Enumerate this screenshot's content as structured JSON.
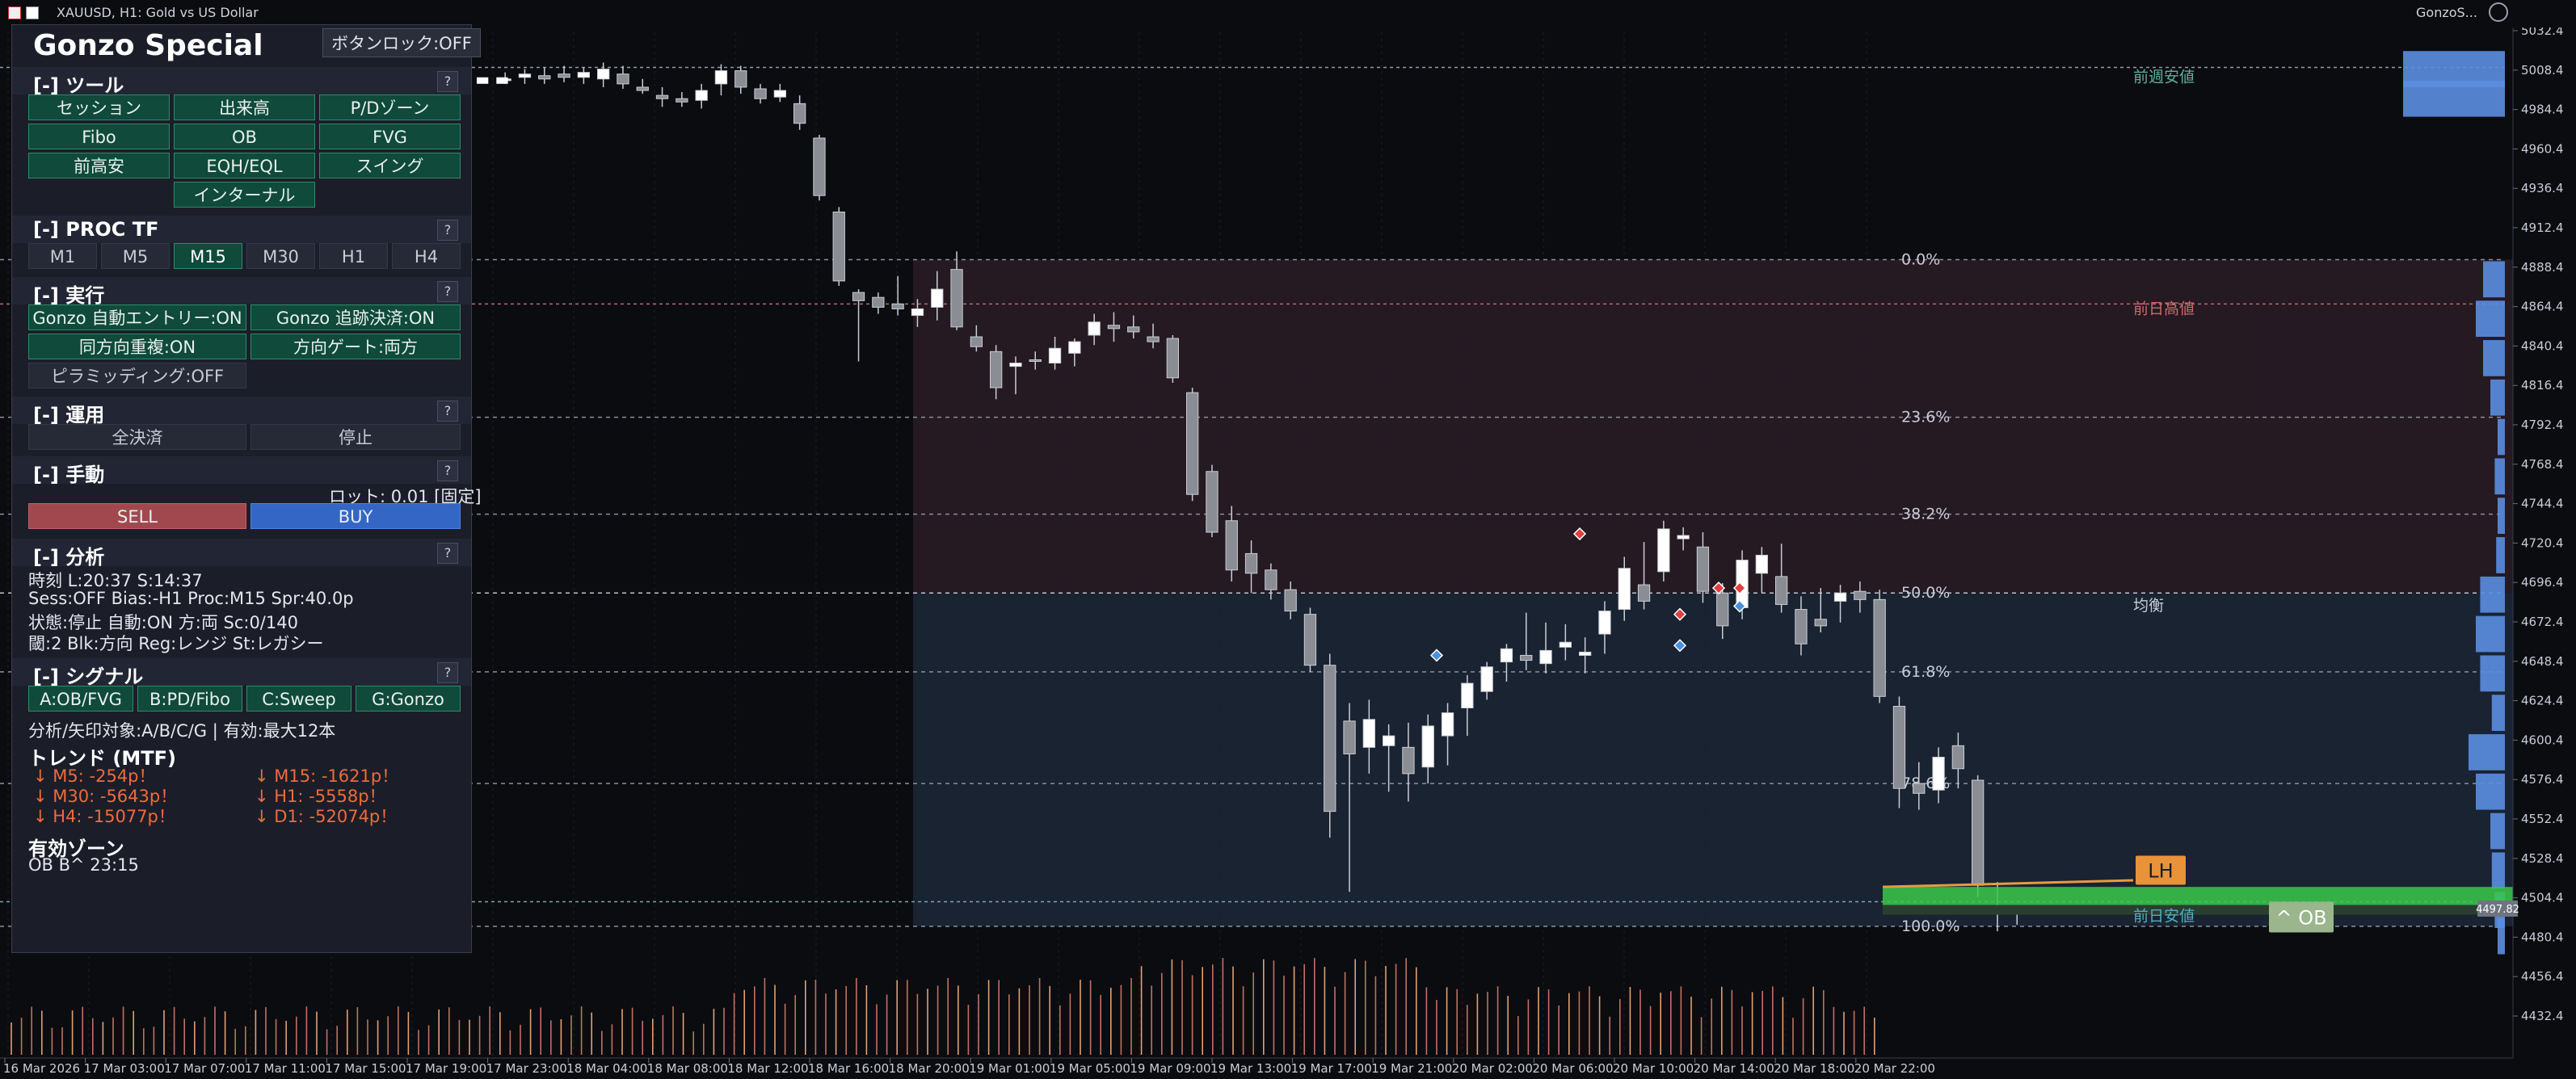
{
  "window": {
    "symbol_title": "XAUUSD, H1:  Gold vs US Dollar",
    "indicator_short": "GonzoS..."
  },
  "panel": {
    "title": "Gonzo Special",
    "button_lock": "ボタンロック:OFF",
    "tools": {
      "header": "[-] ツール",
      "help": "?",
      "buttons": [
        "セッション",
        "出来高",
        "P/Dゾーン",
        "Fibo",
        "OB",
        "FVG",
        "前高安",
        "EQH/EQL",
        "スイング",
        "インターナル"
      ]
    },
    "proc_tf": {
      "header": "[-] PROC TF",
      "help": "?",
      "items": [
        "M1",
        "M5",
        "M15",
        "M30",
        "H1",
        "H4"
      ],
      "selected": "M15"
    },
    "exec": {
      "header": "[-] 実行",
      "help": "?",
      "auto_entry": "Gonzo 自動エントリー:ON",
      "trailing": "Gonzo 追跡決済:ON",
      "same_dir": "同方向重複:ON",
      "dir_gate": "方向ゲート:両方",
      "pyramiding": "ピラミッディング:OFF"
    },
    "ops": {
      "header": "[-] 運用",
      "help": "?",
      "close_all": "全決済",
      "stop": "停止"
    },
    "manual": {
      "header": "[-] 手動",
      "help": "?",
      "lot": "ロット: 0.01 [固定]",
      "sell": "SELL",
      "buy": "BUY"
    },
    "analysis": {
      "header": "[-] 分析",
      "help": "?",
      "lines": [
        "時刻 L:20:37  S:14:37",
        "Sess:OFF  Bias:-H1  Proc:M15  Spr:40.0p",
        "状態:停止  自動:ON  方:両  Sc:0/140",
        "閾:2  Blk:方向  Reg:レンジ  St:レガシー"
      ]
    },
    "signal": {
      "header": "[-] シグナル",
      "help": "?",
      "buttons": [
        "A:OB/FVG",
        "B:PD/Fibo",
        "C:Sweep",
        "G:Gonzo"
      ],
      "target_line": "分析/矢印対象:A/B/C/G | 有効:最大12本"
    },
    "trend": {
      "header": "トレンド (MTF)",
      "items": [
        "↓ M5: -254p！",
        "↓ M15: -1621p！",
        "↓ M30: -5643p！",
        "↓ H1: -5558p！",
        "↓ H4: -15077p！",
        "↓ D1: -52074p！"
      ],
      "color_down": "#ef6b3a"
    },
    "zone": {
      "header": "有効ゾーン",
      "value": "OB B^ 23:15"
    }
  },
  "chart_labels": {
    "prev_week_low": "前週安値",
    "prev_day_high": "前日高値",
    "equilibrium": "均衡",
    "prev_day_low": "前日安値",
    "lh": "LH",
    "ob": "^ OB",
    "current_price": "4497.82"
  },
  "chart_data": {
    "type": "candlestick",
    "symbol": "XAUUSD",
    "timeframe": "H1",
    "y_ticks": [
      5032.4,
      5008.4,
      4984.4,
      4960.4,
      4936.4,
      4912.4,
      4888.4,
      4864.4,
      4840.4,
      4816.4,
      4792.4,
      4768.4,
      4744.4,
      4720.4,
      4696.4,
      4672.4,
      4648.4,
      4624.4,
      4600.4,
      4576.4,
      4552.4,
      4528.4,
      4504.4,
      4480.4,
      4456.4,
      4432.4
    ],
    "ylim": [
      4420,
      5045
    ],
    "x_ticks": [
      "16 Mar 2026",
      "17 Mar 03:00",
      "17 Mar 07:00",
      "17 Mar 11:00",
      "17 Mar 15:00",
      "17 Mar 19:00",
      "17 Mar 23:00",
      "18 Mar 04:00",
      "18 Mar 08:00",
      "18 Mar 12:00",
      "18 Mar 16:00",
      "18 Mar 20:00",
      "19 Mar 01:00",
      "19 Mar 05:00",
      "19 Mar 09:00",
      "19 Mar 13:00",
      "19 Mar 17:00",
      "19 Mar 21:00",
      "20 Mar 02:00",
      "20 Mar 06:00",
      "20 Mar 10:00",
      "20 Mar 14:00",
      "20 Mar 18:00",
      "20 Mar 22:00"
    ],
    "fib_levels": [
      {
        "label": "0.0%",
        "price": 4893
      },
      {
        "label": "23.6%",
        "price": 4797
      },
      {
        "label": "38.2%",
        "price": 4738
      },
      {
        "label": "50.0%",
        "price": 4690
      },
      {
        "label": "61.8%",
        "price": 4642
      },
      {
        "label": "78.6%",
        "price": 4574
      },
      {
        "label": "100.0%",
        "price": 4487
      }
    ],
    "candles": [
      [
        5003,
        5007,
        5000,
        5003
      ],
      [
        5004,
        5009,
        5000,
        5006
      ],
      [
        5005,
        5010,
        5000,
        5003
      ],
      [
        5006,
        5011,
        5001,
        5004
      ],
      [
        5004,
        5010,
        5000,
        5007
      ],
      [
        5003,
        5013,
        4998,
        5009
      ],
      [
        5006,
        5011,
        4997,
        5000
      ],
      [
        4998,
        5003,
        4994,
        4996
      ],
      [
        4993,
        4998,
        4986,
        4991
      ],
      [
        4991,
        4995,
        4986,
        4989
      ],
      [
        4990,
        5000,
        4985,
        4996
      ],
      [
        5000,
        5012,
        4993,
        5008
      ],
      [
        5008,
        5011,
        4994,
        4998
      ],
      [
        4997,
        5000,
        4988,
        4991
      ],
      [
        4992,
        5000,
        4989,
        4996
      ],
      [
        4988,
        4993,
        4972,
        4976
      ],
      [
        4967,
        4969,
        4929,
        4932
      ],
      [
        4922,
        4925,
        4877,
        4880
      ],
      [
        4873,
        4875,
        4831,
        4868
      ],
      [
        4870,
        4873,
        4860,
        4864
      ],
      [
        4866,
        4883,
        4859,
        4863
      ],
      [
        4859,
        4869,
        4852,
        4863
      ],
      [
        4864,
        4886,
        4856,
        4875
      ],
      [
        4887,
        4898,
        4850,
        4852
      ],
      [
        4846,
        4853,
        4837,
        4840
      ],
      [
        4837,
        4841,
        4808,
        4815
      ],
      [
        4828,
        4834,
        4811,
        4830
      ],
      [
        4832,
        4837,
        4826,
        4831
      ],
      [
        4830,
        4846,
        4826,
        4839
      ],
      [
        4836,
        4845,
        4828,
        4843
      ],
      [
        4847,
        4860,
        4841,
        4855
      ],
      [
        4853,
        4861,
        4843,
        4851
      ],
      [
        4852,
        4859,
        4845,
        4849
      ],
      [
        4846,
        4854,
        4839,
        4843
      ],
      [
        4845,
        4847,
        4818,
        4821
      ],
      [
        4812,
        4815,
        4746,
        4750
      ],
      [
        4764,
        4768,
        4724,
        4727
      ],
      [
        4734,
        4743,
        4697,
        4704
      ],
      [
        4714,
        4722,
        4690,
        4702
      ],
      [
        4704,
        4708,
        4686,
        4692
      ],
      [
        4692,
        4697,
        4674,
        4679
      ],
      [
        4677,
        4681,
        4642,
        4646
      ],
      [
        4646,
        4653,
        4541,
        4557
      ],
      [
        4612,
        4623,
        4508,
        4592
      ],
      [
        4596,
        4625,
        4580,
        4613
      ],
      [
        4597,
        4610,
        4569,
        4603
      ],
      [
        4596,
        4611,
        4563,
        4580
      ],
      [
        4584,
        4616,
        4574,
        4609
      ],
      [
        4603,
        4623,
        4585,
        4617
      ],
      [
        4620,
        4640,
        4603,
        4635
      ],
      [
        4630,
        4648,
        4625,
        4645
      ],
      [
        4648,
        4659,
        4636,
        4656
      ],
      [
        4652,
        4678,
        4643,
        4649
      ],
      [
        4647,
        4672,
        4641,
        4655
      ],
      [
        4657,
        4671,
        4649,
        4660
      ],
      [
        4652,
        4663,
        4641,
        4654
      ],
      [
        4665,
        4685,
        4653,
        4679
      ],
      [
        4680,
        4712,
        4673,
        4705
      ],
      [
        4695,
        4721,
        4680,
        4685
      ],
      [
        4703,
        4734,
        4697,
        4729
      ],
      [
        4723,
        4730,
        4716,
        4725
      ],
      [
        4718,
        4727,
        4684,
        4691
      ],
      [
        4690,
        4696,
        4662,
        4670
      ],
      [
        4681,
        4716,
        4674,
        4710
      ],
      [
        4702,
        4718,
        4690,
        4713
      ],
      [
        4700,
        4720,
        4678,
        4683
      ],
      [
        4680,
        4688,
        4652,
        4659
      ],
      [
        4674,
        4693,
        4666,
        4670
      ],
      [
        4685,
        4695,
        4672,
        4690
      ],
      [
        4691,
        4697,
        4678,
        4686
      ],
      [
        4686,
        4692,
        4623,
        4627
      ],
      [
        4621,
        4627,
        4559,
        4571
      ],
      [
        4574,
        4587,
        4558,
        4568
      ],
      [
        4570,
        4596,
        4562,
        4590
      ],
      [
        4597,
        4605,
        4571,
        4583
      ],
      [
        4576,
        4579,
        4505,
        4512
      ],
      [
        4498,
        4514,
        4484,
        4497
      ],
      [
        4495,
        4500,
        4488,
        4497
      ]
    ],
    "volume_note": "tick volume histogram below price",
    "grid": false
  }
}
